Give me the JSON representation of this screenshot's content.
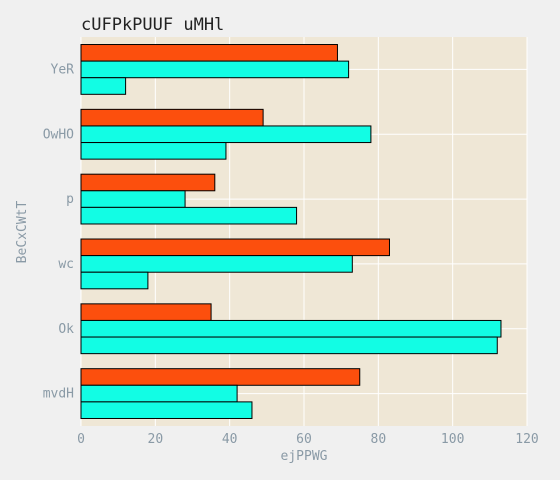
{
  "chart_data": {
    "type": "bar",
    "orientation": "horizontal",
    "title": "cUFPkPUUF uMHl",
    "xlabel": "ejPPWG",
    "ylabel": "BeCxCWtT",
    "categories": [
      "mvdH",
      "Ok",
      "wc",
      "p",
      "OwHO",
      "YeR"
    ],
    "series": [
      {
        "color": "#fc4f0d",
        "values": [
          75,
          35,
          83,
          36,
          49,
          69
        ]
      },
      {
        "color": "#12fde4",
        "values": [
          42,
          113,
          73,
          28,
          78,
          72
        ]
      },
      {
        "color": "#12fde4",
        "values": [
          46,
          112,
          18,
          58,
          39,
          12
        ]
      }
    ],
    "xlim": [
      0,
      120
    ],
    "xticks": [
      "0",
      "20",
      "40",
      "60",
      "80",
      "100",
      "120"
    ],
    "grid": true,
    "legend": "none",
    "plot_background": "#efe7d6",
    "page_background": "#f0f0f0"
  }
}
